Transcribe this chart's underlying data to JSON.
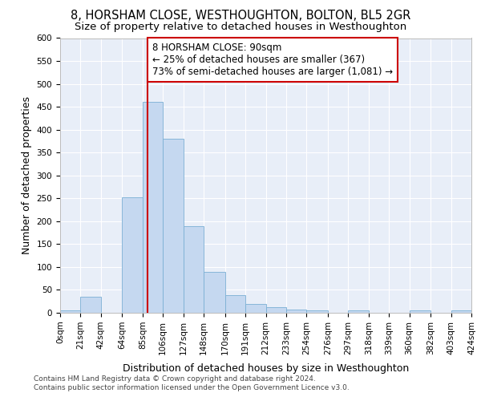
{
  "title": "8, HORSHAM CLOSE, WESTHOUGHTON, BOLTON, BL5 2GR",
  "subtitle": "Size of property relative to detached houses in Westhoughton",
  "xlabel": "Distribution of detached houses by size in Westhoughton",
  "ylabel": "Number of detached properties",
  "bar_color": "#c5d8f0",
  "bar_edge_color": "#7bafd4",
  "annotation_box_text": "8 HORSHAM CLOSE: 90sqm\n← 25% of detached houses are smaller (367)\n73% of semi-detached houses are larger (1,081) →",
  "annotation_box_color": "#ffffff",
  "annotation_box_edge": "#cc0000",
  "vline_x": 90,
  "vline_color": "#cc0000",
  "bin_edges": [
    0,
    21,
    42,
    64,
    85,
    106,
    127,
    148,
    170,
    191,
    212,
    233,
    254,
    276,
    297,
    318,
    339,
    360,
    382,
    403,
    424
  ],
  "bar_heights": [
    5,
    35,
    0,
    252,
    460,
    380,
    190,
    90,
    38,
    20,
    13,
    7,
    6,
    0,
    5,
    0,
    0,
    6,
    0,
    5
  ],
  "tick_labels": [
    "0sqm",
    "21sqm",
    "42sqm",
    "64sqm",
    "85sqm",
    "106sqm",
    "127sqm",
    "148sqm",
    "170sqm",
    "191sqm",
    "212sqm",
    "233sqm",
    "254sqm",
    "276sqm",
    "297sqm",
    "318sqm",
    "339sqm",
    "360sqm",
    "382sqm",
    "403sqm",
    "424sqm"
  ],
  "ylim": [
    0,
    600
  ],
  "yticks": [
    0,
    50,
    100,
    150,
    200,
    250,
    300,
    350,
    400,
    450,
    500,
    550,
    600
  ],
  "background_color": "#e8eef8",
  "footer_line1": "Contains HM Land Registry data © Crown copyright and database right 2024.",
  "footer_line2": "Contains public sector information licensed under the Open Government Licence v3.0.",
  "title_fontsize": 10.5,
  "subtitle_fontsize": 9.5,
  "annotation_fontsize": 8.5,
  "axis_label_fontsize": 9,
  "tick_fontsize": 7.5,
  "footer_fontsize": 6.5
}
